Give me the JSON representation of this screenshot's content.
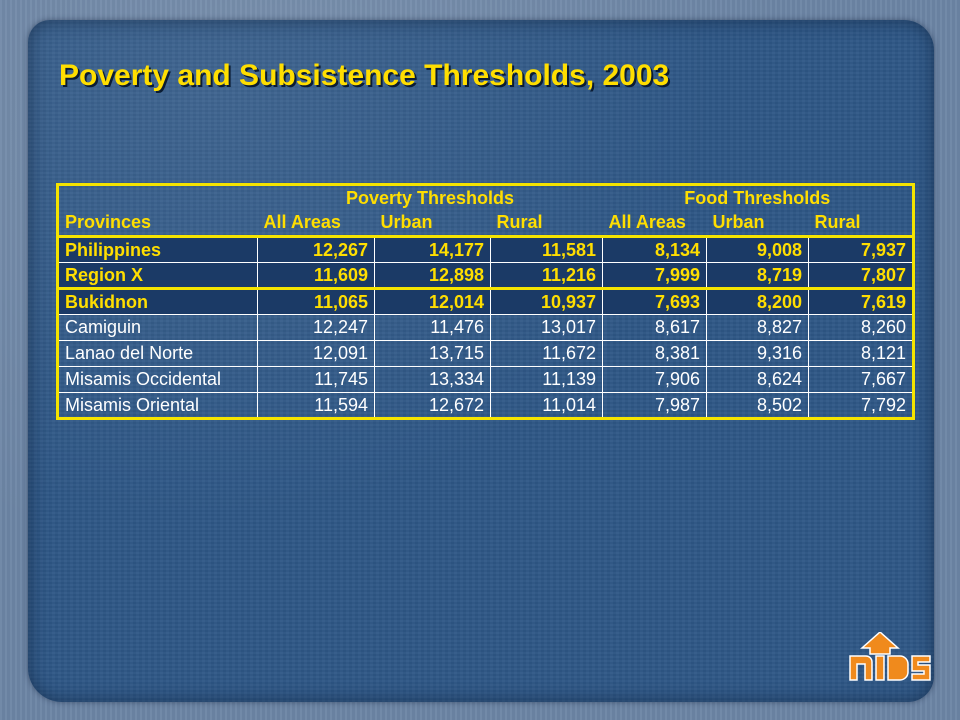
{
  "slide": {
    "title": "Poverty and Subsistence Thresholds, 2003"
  },
  "table": {
    "group_headers": [
      "Poverty Thresholds",
      "Food Thresholds"
    ],
    "column_headers": [
      "Provinces",
      "All Areas",
      "Urban",
      "Rural",
      "All Areas",
      "Urban",
      "Rural"
    ],
    "rows": [
      {
        "name": "Philippines",
        "values": [
          "12,267",
          "14,177",
          "11,581",
          "8,134",
          "9,008",
          "7,937"
        ],
        "emphasis": true
      },
      {
        "name": "Region X",
        "values": [
          "11,609",
          "12,898",
          "11,216",
          "7,999",
          "8,719",
          "7,807"
        ],
        "emphasis": true
      },
      {
        "name": "Bukidnon",
        "values": [
          "11,065",
          "12,014",
          "10,937",
          "7,693",
          "8,200",
          "7,619"
        ],
        "emphasis": true
      },
      {
        "name": "Camiguin",
        "values": [
          "12,247",
          "11,476",
          "13,017",
          "8,617",
          "8,827",
          "8,260"
        ],
        "emphasis": false
      },
      {
        "name": "Lanao del Norte",
        "values": [
          "12,091",
          "13,715",
          "11,672",
          "8,381",
          "9,316",
          "8,121"
        ],
        "emphasis": false
      },
      {
        "name": "Misamis Occidental",
        "values": [
          "11,745",
          "13,334",
          "11,139",
          "7,906",
          "8,624",
          "7,667"
        ],
        "emphasis": false
      },
      {
        "name": "Misamis Oriental",
        "values": [
          "11,594",
          "12,672",
          "11,014",
          "7,987",
          "8,502",
          "7,792"
        ],
        "emphasis": false
      }
    ]
  },
  "logo": {
    "text": "nIDS",
    "icon": "up-arrow-logo-icon"
  },
  "colors": {
    "background": "#2e5786",
    "title": "#ffde00",
    "table_border": "#f5e400",
    "summary_row": "#1b3a66",
    "text": "#ffffff"
  }
}
